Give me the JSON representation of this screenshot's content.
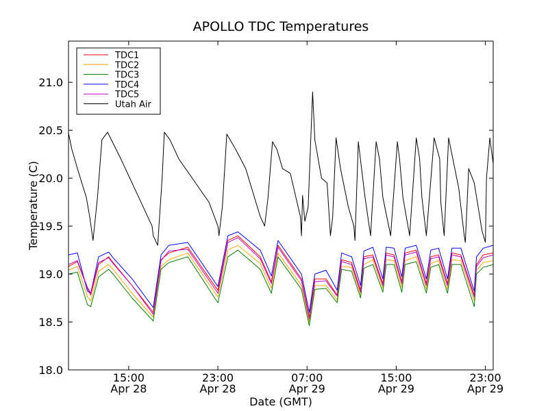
{
  "chart_data": {
    "type": "line",
    "title": "APOLLO TDC Temperatures",
    "xlabel": "Date (GMT)",
    "ylabel": "Temperature (C)",
    "ylim": [
      18.0,
      21.43
    ],
    "xlim_hours": [
      9.6,
      47.7
    ],
    "x_unit": "hours since Apr 28 00:00 GMT",
    "y_ticks": [
      "18.0",
      "18.5",
      "19.0",
      "19.5",
      "20.0",
      "20.5",
      "21.0"
    ],
    "x_ticks": [
      {
        "hour": 15,
        "time": "15:00",
        "date": "Apr 28"
      },
      {
        "hour": 23,
        "time": "23:00",
        "date": "Apr 28"
      },
      {
        "hour": 31,
        "time": "07:00",
        "date": "Apr 29"
      },
      {
        "hour": 39,
        "time": "15:00",
        "date": "Apr 29"
      },
      {
        "hour": 47,
        "time": "23:00",
        "date": "Apr 29"
      }
    ],
    "legend_position": "upper-left",
    "series": [
      {
        "name": "TDC1",
        "color": "#ff0000",
        "x": [
          9.6,
          10.4,
          11.3,
          11.6,
          12.3,
          13.2,
          13.6,
          15.3,
          17.2,
          17.9,
          18.6,
          20.3,
          23.0,
          23.9,
          24.8,
          26.8,
          27.8,
          28.4,
          30.5,
          31.2,
          31.7,
          32.7,
          33.7,
          34.1,
          35.0,
          35.8,
          36.1,
          36.9,
          37.8,
          38.1,
          38.8,
          39.5,
          39.8,
          40.8,
          41.7,
          42.1,
          42.8,
          43.6,
          44.0,
          44.8,
          46.0,
          46.2,
          46.8,
          47.7
        ],
        "values": [
          19.08,
          19.13,
          18.85,
          18.78,
          19.1,
          19.18,
          19.12,
          18.88,
          18.6,
          19.15,
          19.22,
          19.28,
          18.83,
          19.35,
          19.4,
          19.18,
          18.92,
          19.3,
          18.95,
          18.55,
          18.95,
          18.95,
          18.78,
          19.15,
          19.12,
          18.83,
          19.18,
          19.2,
          18.9,
          19.22,
          19.2,
          18.92,
          19.22,
          19.25,
          18.9,
          19.18,
          19.2,
          18.9,
          19.22,
          19.2,
          18.78,
          19.1,
          19.2,
          19.22
        ]
      },
      {
        "name": "TDC2",
        "color": "#ffa500",
        "x": [
          9.6,
          10.4,
          11.3,
          11.6,
          12.3,
          13.2,
          13.6,
          15.3,
          17.2,
          17.9,
          18.6,
          20.3,
          23.0,
          23.9,
          24.8,
          26.8,
          27.8,
          28.4,
          30.5,
          31.2,
          31.7,
          32.7,
          33.7,
          34.1,
          35.0,
          35.8,
          36.1,
          36.9,
          37.8,
          38.1,
          38.8,
          39.5,
          39.8,
          40.8,
          41.7,
          42.1,
          42.8,
          43.6,
          44.0,
          44.8,
          46.0,
          46.2,
          46.8,
          47.7
        ],
        "values": [
          19.04,
          19.08,
          18.76,
          18.72,
          19.03,
          19.1,
          19.05,
          18.8,
          18.55,
          19.08,
          19.15,
          19.22,
          18.76,
          19.25,
          19.3,
          19.11,
          18.85,
          19.22,
          18.88,
          18.5,
          18.88,
          18.88,
          18.73,
          19.08,
          19.07,
          18.78,
          19.1,
          19.15,
          18.85,
          19.15,
          19.14,
          18.86,
          19.14,
          19.18,
          18.84,
          19.11,
          19.14,
          18.84,
          19.15,
          19.14,
          18.72,
          19.04,
          19.12,
          19.14
        ]
      },
      {
        "name": "TDC3",
        "color": "#008000",
        "x": [
          9.6,
          10.4,
          11.3,
          11.6,
          12.3,
          13.2,
          13.6,
          15.3,
          17.2,
          17.9,
          18.6,
          20.3,
          23.0,
          23.9,
          24.8,
          26.8,
          27.8,
          28.4,
          30.5,
          31.2,
          31.7,
          32.7,
          33.7,
          34.1,
          35.0,
          35.8,
          36.1,
          36.9,
          37.8,
          38.1,
          38.8,
          39.5,
          39.8,
          40.8,
          41.7,
          42.1,
          42.8,
          43.6,
          44.0,
          44.8,
          46.0,
          46.2,
          46.8,
          47.7
        ],
        "values": [
          19.0,
          19.02,
          18.68,
          18.66,
          18.97,
          19.05,
          19.0,
          18.75,
          18.51,
          19.05,
          19.12,
          19.18,
          18.7,
          19.18,
          19.25,
          19.05,
          18.8,
          19.18,
          18.84,
          18.46,
          18.84,
          18.85,
          18.7,
          19.05,
          19.03,
          18.75,
          19.06,
          19.1,
          18.81,
          19.1,
          19.1,
          18.81,
          19.1,
          19.13,
          18.8,
          19.07,
          19.1,
          18.8,
          19.1,
          19.1,
          18.66,
          19.0,
          19.07,
          19.1
        ]
      },
      {
        "name": "TDC4",
        "color": "#0000ff",
        "x": [
          9.6,
          10.4,
          11.3,
          11.6,
          12.3,
          13.2,
          13.6,
          15.3,
          17.2,
          17.9,
          18.6,
          20.3,
          23.0,
          23.9,
          24.8,
          26.8,
          27.8,
          28.4,
          30.5,
          31.2,
          31.7,
          32.7,
          33.7,
          34.1,
          35.0,
          35.8,
          36.1,
          36.9,
          37.8,
          38.1,
          38.8,
          39.5,
          39.8,
          40.8,
          41.7,
          42.1,
          42.8,
          43.6,
          44.0,
          44.8,
          46.0,
          46.2,
          46.8,
          47.7
        ],
        "values": [
          19.2,
          19.22,
          18.82,
          18.8,
          19.18,
          19.23,
          19.17,
          18.95,
          18.65,
          19.2,
          19.3,
          19.33,
          18.87,
          19.4,
          19.44,
          19.25,
          18.98,
          19.35,
          19.0,
          18.6,
          19.0,
          19.04,
          18.83,
          19.22,
          19.18,
          18.88,
          19.24,
          19.28,
          18.95,
          19.28,
          19.27,
          18.97,
          19.27,
          19.3,
          18.95,
          19.25,
          19.27,
          18.95,
          19.27,
          19.27,
          18.82,
          19.18,
          19.27,
          19.3
        ]
      },
      {
        "name": "TDC5",
        "color": "#bf00bf",
        "x": [
          9.6,
          10.4,
          11.3,
          11.6,
          12.3,
          13.2,
          13.6,
          15.3,
          17.2,
          17.9,
          18.6,
          20.3,
          23.0,
          23.9,
          24.8,
          26.8,
          27.8,
          28.4,
          30.5,
          31.2,
          31.7,
          32.7,
          33.7,
          34.1,
          35.0,
          35.8,
          36.1,
          36.9,
          37.8,
          38.1,
          38.8,
          39.5,
          39.8,
          40.8,
          41.7,
          42.1,
          42.8,
          43.6,
          44.0,
          44.8,
          46.0,
          46.2,
          46.8,
          47.7
        ],
        "values": [
          19.1,
          19.14,
          18.86,
          18.8,
          19.12,
          19.17,
          19.11,
          18.88,
          18.58,
          19.14,
          19.24,
          19.26,
          18.8,
          19.33,
          19.38,
          19.16,
          18.9,
          19.28,
          18.93,
          18.53,
          18.92,
          18.93,
          18.77,
          19.13,
          19.1,
          18.81,
          19.16,
          19.18,
          18.88,
          19.2,
          19.18,
          18.9,
          19.2,
          19.23,
          18.88,
          19.16,
          19.18,
          18.88,
          19.2,
          19.18,
          18.76,
          19.08,
          19.17,
          19.2
        ]
      },
      {
        "name": "Utah Air",
        "color": "#000000",
        "x": [
          9.6,
          9.9,
          10.4,
          11.2,
          11.5,
          11.8,
          12.2,
          12.6,
          13.1,
          14.3,
          16.1,
          17.1,
          17.2,
          17.6,
          18.0,
          18.2,
          18.7,
          19.5,
          20.7,
          22.2,
          23.0,
          23.1,
          23.4,
          23.8,
          24.6,
          25.5,
          26.8,
          27.2,
          27.5,
          27.9,
          28.3,
          28.8,
          29.5,
          30.4,
          30.5,
          30.6,
          30.8,
          31.1,
          31.3,
          31.5,
          31.7,
          32.3,
          32.8,
          33.1,
          33.3,
          33.6,
          34.0,
          34.7,
          35.2,
          35.3,
          35.6,
          36.2,
          36.7,
          37.2,
          37.5,
          37.8,
          38.5,
          39.1,
          39.3,
          39.6,
          40.2,
          40.8,
          41.1,
          41.3,
          41.7,
          42.4,
          42.9,
          43.0,
          43.3,
          43.7,
          44.6,
          45.1,
          45.2,
          45.5,
          46.0,
          46.7,
          47.0,
          47.1,
          47.4,
          47.7
        ],
        "values": [
          20.47,
          20.3,
          20.1,
          19.8,
          19.6,
          19.35,
          19.8,
          20.4,
          20.48,
          20.2,
          19.75,
          19.5,
          19.4,
          19.3,
          20.0,
          20.48,
          20.4,
          20.2,
          20.0,
          19.75,
          19.5,
          19.4,
          19.7,
          20.46,
          20.3,
          20.1,
          19.6,
          19.5,
          19.8,
          20.38,
          20.3,
          20.1,
          20.05,
          19.6,
          19.4,
          19.82,
          19.55,
          19.7,
          20.3,
          20.9,
          20.4,
          20.0,
          19.95,
          19.4,
          19.6,
          20.42,
          20.1,
          19.7,
          19.5,
          19.35,
          20.38,
          19.8,
          19.4,
          20.38,
          20.2,
          19.8,
          19.4,
          20.38,
          20.2,
          19.8,
          19.4,
          20.42,
          20.2,
          19.8,
          19.4,
          20.42,
          20.2,
          19.75,
          19.4,
          20.42,
          19.9,
          19.4,
          19.33,
          20.1,
          19.95,
          19.45,
          19.33,
          20.0,
          20.42,
          20.15
        ]
      }
    ]
  }
}
